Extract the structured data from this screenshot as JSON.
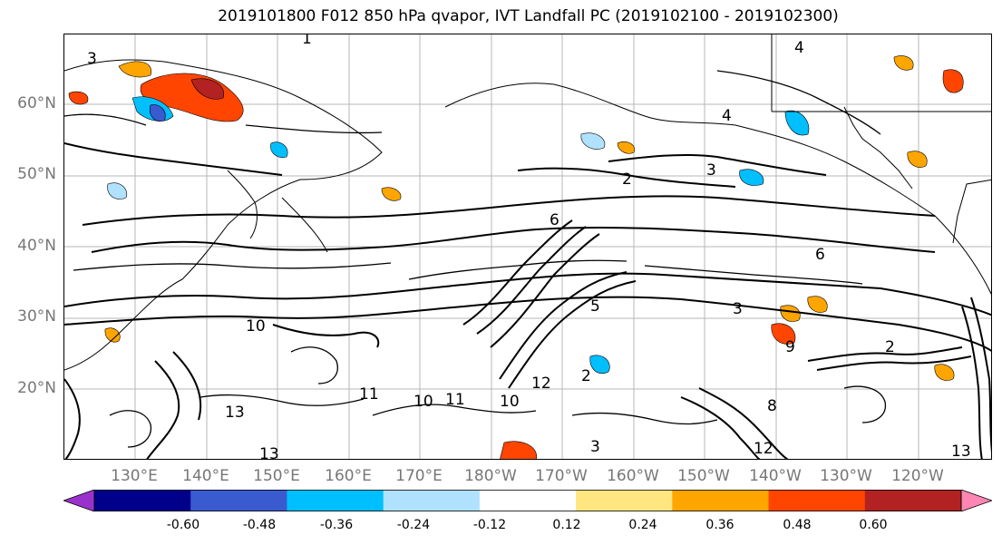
{
  "title": "2019101800 F012 850 hPa qvapor, IVT Landfall PC (2019102100 - 2019102300)",
  "lat_labels": [
    "60°N",
    "50°N",
    "40°N",
    "30°N",
    "20°N"
  ],
  "lon_labels": [
    "130°E",
    "140°E",
    "150°E",
    "160°E",
    "170°E",
    "180°W",
    "170°W",
    "160°W",
    "150°W",
    "140°W",
    "130°W",
    "120°W"
  ],
  "colorbar": {
    "colors": [
      "#9932cc",
      "#00008b",
      "#3a5bd0",
      "#00bfff",
      "#b0e2ff",
      "#ffffff",
      "#ffe680",
      "#ffa500",
      "#ff4500",
      "#b22222",
      "#ff85b3"
    ],
    "tick_labels": [
      "-0.60",
      "-0.48",
      "-0.36",
      "-0.24",
      "-0.12",
      "0.12",
      "0.24",
      "0.36",
      "0.48",
      "0.60"
    ]
  },
  "contour_labels": [
    "3",
    "1",
    "2",
    "4",
    "4",
    "3",
    "2",
    "3",
    "2",
    "6",
    "10",
    "10",
    "11",
    "12",
    "13",
    "13",
    "13",
    "5",
    "9",
    "8",
    "6",
    "11",
    "10",
    "12",
    "3"
  ]
}
